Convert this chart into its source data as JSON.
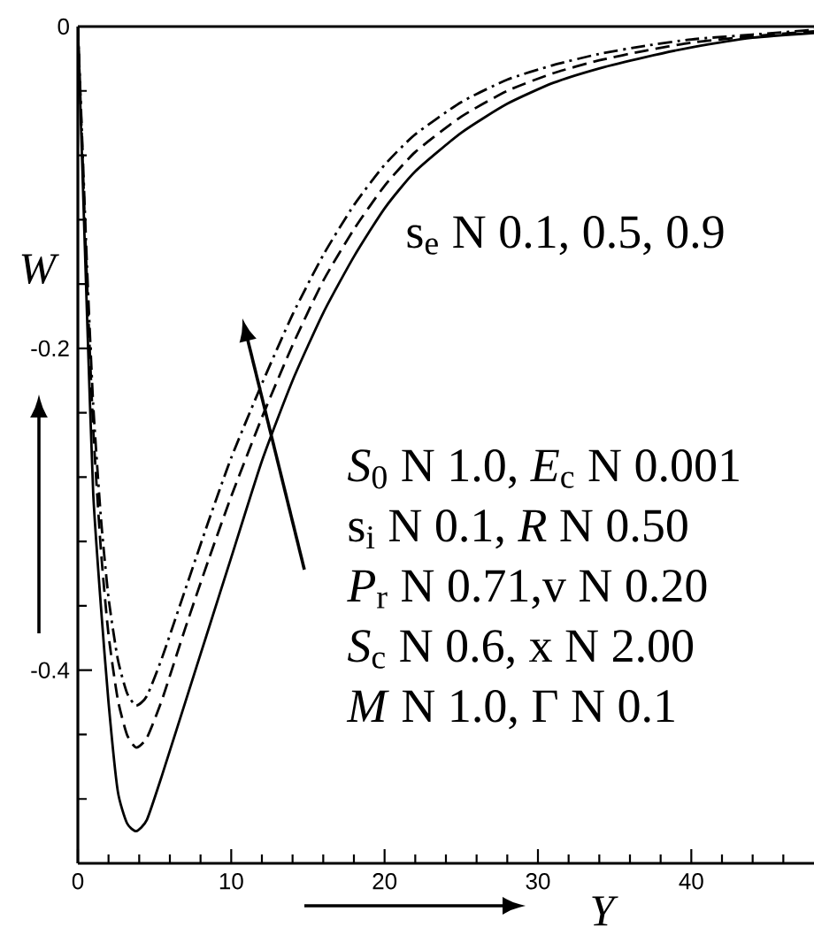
{
  "chart_data": {
    "type": "line",
    "xlabel": "Y",
    "ylabel": "W",
    "x": [
      0,
      0.3,
      0.6,
      1.0,
      1.5,
      2.0,
      2.6,
      3.2,
      3.8,
      4.5,
      5.5,
      7,
      8.5,
      10,
      12,
      14,
      16,
      18,
      20,
      22,
      25,
      28,
      31,
      34,
      37,
      40,
      44,
      48
    ],
    "series": [
      {
        "color": "#000000",
        "line_style": "solid",
        "values": [
          0,
          -0.09,
          -0.18,
          -0.29,
          -0.36,
          -0.42,
          -0.475,
          -0.495,
          -0.5,
          -0.493,
          -0.465,
          -0.42,
          -0.375,
          -0.33,
          -0.27,
          -0.22,
          -0.178,
          -0.143,
          -0.113,
          -0.09,
          -0.066,
          -0.048,
          -0.035,
          -0.026,
          -0.019,
          -0.013,
          -0.007,
          -0.004
        ]
      },
      {
        "color": "#000000",
        "line_style": "dashed",
        "values": [
          0,
          -0.08,
          -0.16,
          -0.25,
          -0.325,
          -0.378,
          -0.418,
          -0.44,
          -0.448,
          -0.442,
          -0.418,
          -0.374,
          -0.332,
          -0.292,
          -0.243,
          -0.198,
          -0.158,
          -0.126,
          -0.099,
          -0.078,
          -0.056,
          -0.04,
          -0.029,
          -0.021,
          -0.015,
          -0.01,
          -0.006,
          -0.003
        ]
      },
      {
        "color": "#000000",
        "line_style": "dashdot",
        "values": [
          0,
          -0.075,
          -0.15,
          -0.235,
          -0.305,
          -0.355,
          -0.393,
          -0.414,
          -0.422,
          -0.416,
          -0.392,
          -0.35,
          -0.308,
          -0.268,
          -0.222,
          -0.179,
          -0.142,
          -0.111,
          -0.086,
          -0.067,
          -0.047,
          -0.033,
          -0.024,
          -0.017,
          -0.012,
          -0.008,
          -0.005,
          -0.002
        ]
      }
    ],
    "xlim": [
      0,
      48
    ],
    "ylim": [
      -0.52,
      0
    ],
    "xticks": [
      0,
      {
        "value": 2,
        "label": null
      },
      {
        "value": 4,
        "label": null
      },
      {
        "value": 6,
        "label": null
      },
      {
        "value": 8,
        "label": null
      },
      10,
      {
        "value": 12,
        "label": null
      },
      {
        "value": 14,
        "label": null
      },
      {
        "value": 16,
        "label": null
      },
      {
        "value": 18,
        "label": null
      },
      20,
      {
        "value": 22,
        "label": null
      },
      {
        "value": 24,
        "label": null
      },
      {
        "value": 26,
        "label": null
      },
      {
        "value": 28,
        "label": null
      },
      30,
      {
        "value": 32,
        "label": null
      },
      {
        "value": 34,
        "label": null
      },
      {
        "value": 36,
        "label": null
      },
      {
        "value": 38,
        "label": null
      },
      40,
      {
        "value": 42,
        "label": null
      },
      {
        "value": 44,
        "label": null
      },
      {
        "value": 46,
        "label": null
      }
    ],
    "yticks": [
      0,
      {
        "value": -0.04,
        "label": null
      },
      {
        "value": -0.08,
        "label": null
      },
      {
        "value": -0.12,
        "label": null
      },
      {
        "value": -0.16,
        "label": null
      },
      -0.2,
      {
        "value": -0.24,
        "label": null
      },
      {
        "value": -0.28,
        "label": null
      },
      {
        "value": -0.32,
        "label": null
      },
      {
        "value": -0.36,
        "label": null
      },
      -0.4,
      {
        "value": -0.44,
        "label": null
      },
      {
        "value": -0.48,
        "label": null
      }
    ],
    "annotations": [
      "s$_{e}$ N 0.1, 0.5, 0.9",
      "*S*$_{0}$ N 1.0, *E*$_{c}$ N 0.001",
      "s$_{i}$ N 0.1,  *R* N 0.50",
      "*P*$_{r}$ N 0.71,v N 0.20",
      "*S*$_{c}$ N 0.6, x N 2.00",
      "*M* N 1.0, Γ N 0.1"
    ]
  }
}
